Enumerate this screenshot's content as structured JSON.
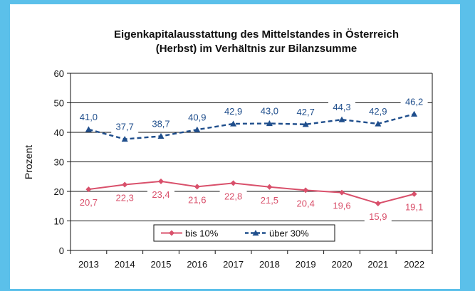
{
  "chart_data": {
    "type": "line",
    "title_line1": "Eigenkapitalausstattung des Mittelstandes in Österreich",
    "title_line2": "(Herbst) im Verhältnis zur Bilanzsumme",
    "xlabel": "",
    "ylabel": "Prozent",
    "ylim": [
      0,
      60
    ],
    "yticks": [
      0,
      10,
      20,
      30,
      40,
      50,
      60
    ],
    "grid": true,
    "legend_position": "bottom-center",
    "categories": [
      "2013",
      "2014",
      "2015",
      "2016",
      "2017",
      "2018",
      "2019",
      "2020",
      "2021",
      "2022"
    ],
    "series": [
      {
        "name": "bis 10%",
        "values": [
          20.7,
          22.3,
          23.4,
          21.6,
          22.8,
          21.5,
          20.4,
          19.6,
          15.9,
          19.1
        ],
        "labels": [
          "20,7",
          "22,3",
          "23,4",
          "21,6",
          "22,8",
          "21,5",
          "20,4",
          "19,6",
          "15,9",
          "19,1"
        ],
        "color": "#d9506b",
        "marker": "diamond",
        "line_style": "solid"
      },
      {
        "name": "über 30%",
        "values": [
          41.0,
          37.7,
          38.7,
          40.9,
          42.9,
          43.0,
          42.7,
          44.3,
          42.9,
          46.2
        ],
        "labels": [
          "41,0",
          "37,7",
          "38,7",
          "40,9",
          "42,9",
          "43,0",
          "42,7",
          "44,3",
          "42,9",
          "46,2"
        ],
        "color": "#1f4e8c",
        "marker": "triangle",
        "line_style": "dashed"
      }
    ]
  }
}
